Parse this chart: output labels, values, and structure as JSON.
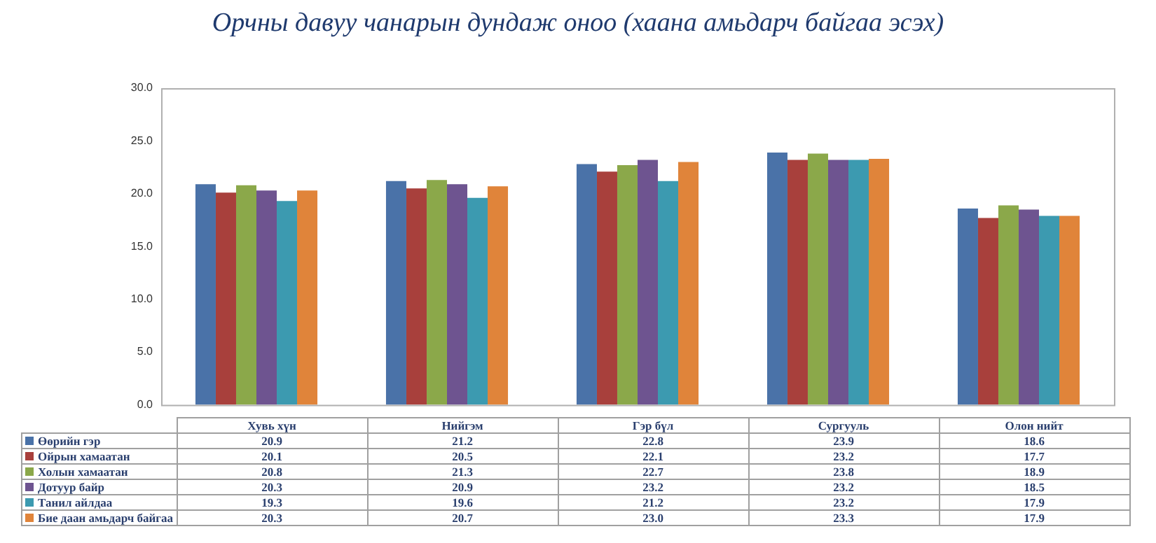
{
  "chart_data": {
    "type": "bar",
    "title": "Орчны давуу чанарын дундаж оноо (хаана амьдарч байгаа эсэх)",
    "categories": [
      "Хувь хүн",
      "Нийгэм",
      "Гэр бүл",
      "Сургууль",
      "Олон нийт"
    ],
    "series": [
      {
        "name": "Өөрийн гэр",
        "color": "#4a72a8",
        "values": [
          20.9,
          21.2,
          22.8,
          23.9,
          18.6
        ],
        "value_labels": [
          "20.9",
          "21.2",
          "22.8",
          "23.9",
          "18.6"
        ]
      },
      {
        "name": "Ойрын хамаатан",
        "color": "#a8403c",
        "values": [
          20.1,
          20.5,
          22.1,
          23.2,
          17.7
        ],
        "value_labels": [
          "20.1",
          "20.5",
          "22.1",
          "23.2",
          "17.7"
        ]
      },
      {
        "name": "Холын хамаатан",
        "color": "#8ba84a",
        "values": [
          20.8,
          21.3,
          22.7,
          23.8,
          18.9
        ],
        "value_labels": [
          "20.8",
          "21.3",
          "22.7",
          "23.8",
          "18.9"
        ]
      },
      {
        "name": "Дотуур байр",
        "color": "#6e5490",
        "values": [
          20.3,
          20.9,
          23.2,
          23.2,
          18.5
        ],
        "value_labels": [
          "20.3",
          "20.9",
          "23.2",
          "23.2",
          "18.5"
        ]
      },
      {
        "name": "Танил айлдаа",
        "color": "#3c9ab0",
        "values": [
          19.3,
          19.6,
          21.2,
          23.2,
          17.9
        ],
        "value_labels": [
          "19.3",
          "19.6",
          "21.2",
          "23.2",
          "17.9"
        ]
      },
      {
        "name": "Бие даан амьдарч байгаа",
        "color": "#e0843a",
        "values": [
          20.3,
          20.7,
          23.0,
          23.3,
          17.9
        ],
        "value_labels": [
          "20.3",
          "20.7",
          "23.0",
          "23.3",
          "17.9"
        ]
      }
    ],
    "ylim": [
      0,
      30
    ],
    "yticks": [
      {
        "value": 0,
        "label": "0.0"
      },
      {
        "value": 5,
        "label": "5.0"
      },
      {
        "value": 10,
        "label": "10.0"
      },
      {
        "value": 15,
        "label": "15.0"
      },
      {
        "value": 20,
        "label": "20.0"
      },
      {
        "value": 25,
        "label": "25.0"
      },
      {
        "value": 30,
        "label": "30.0"
      }
    ],
    "grid": false,
    "legend": "bottom"
  }
}
